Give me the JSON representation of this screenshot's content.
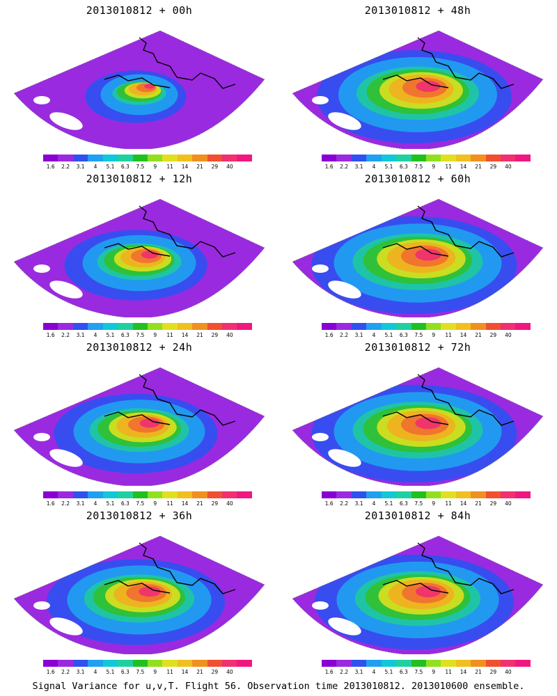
{
  "panels": [
    {
      "title": "2013010812 + 00h",
      "intensity": 0.35
    },
    {
      "title": "2013010812 + 48h",
      "intensity": 0.8
    },
    {
      "title": "2013010812 + 12h",
      "intensity": 0.55
    },
    {
      "title": "2013010812 + 60h",
      "intensity": 0.85
    },
    {
      "title": "2013010812 + 24h",
      "intensity": 0.65
    },
    {
      "title": "2013010812 + 72h",
      "intensity": 0.85
    },
    {
      "title": "2013010812 + 36h",
      "intensity": 0.72
    },
    {
      "title": "2013010812 + 84h",
      "intensity": 0.82
    }
  ],
  "colorbar": {
    "colors": [
      "#8a00d4",
      "#9a2ae0",
      "#3050f0",
      "#20a0f0",
      "#10c8d8",
      "#20d0a0",
      "#20c020",
      "#90e020",
      "#e0e020",
      "#f0c020",
      "#f09020",
      "#f05030",
      "#f03070",
      "#f01880"
    ],
    "labels": [
      "1.6",
      "2.2",
      "3.1",
      "4",
      "5.1",
      "6.3",
      "7.5",
      "9",
      "11",
      "14",
      "21",
      "29",
      "40"
    ]
  },
  "footer": "Signal Variance for u,v,T. Flight 56. Observation time 2013010812. 2013010600 ensemble."
}
